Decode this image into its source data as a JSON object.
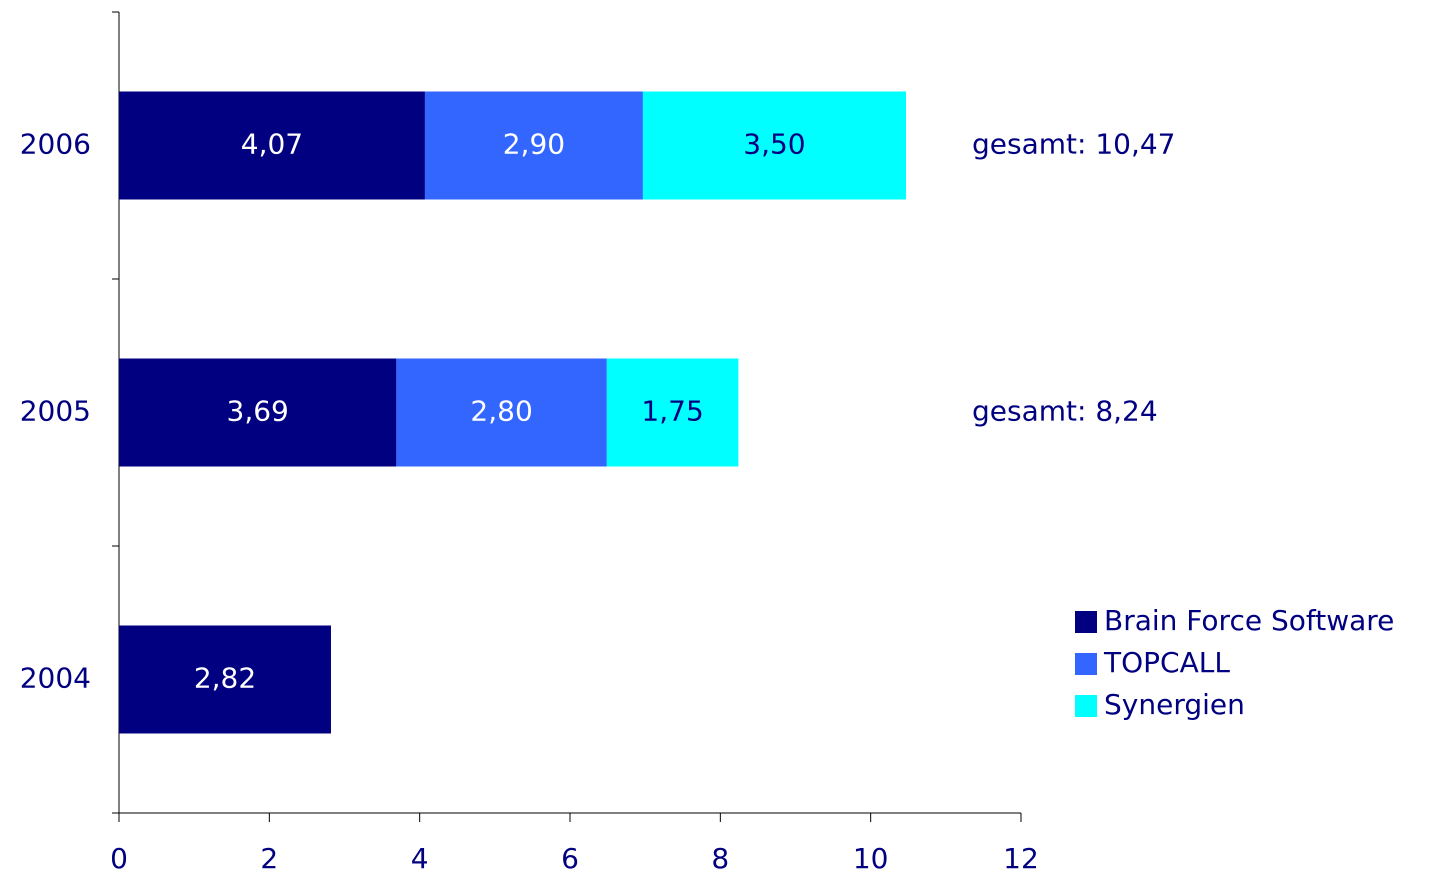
{
  "chart_data": {
    "type": "stacked-barh",
    "categories": [
      "2004",
      "2005",
      "2006"
    ],
    "series": [
      {
        "name": "Brain Force Software",
        "color": "#000080",
        "values": [
          2.82,
          3.69,
          4.07
        ],
        "value_labels": [
          "2,82",
          "3,69",
          "4,07"
        ]
      },
      {
        "name": "TOPCALL",
        "color": "#3366ff",
        "values": [
          null,
          2.8,
          2.9
        ],
        "value_labels": [
          null,
          "2,80",
          "2,90"
        ]
      },
      {
        "name": "Synergien",
        "color": "#00ffff",
        "values": [
          null,
          1.75,
          3.5
        ],
        "value_labels": [
          null,
          "1,75",
          "3,50"
        ]
      }
    ],
    "total_labels": [
      null,
      "gesamt: 8,24",
      "gesamt: 10,47"
    ],
    "xlim": [
      0,
      12
    ],
    "xticks": [
      0,
      2,
      4,
      6,
      8,
      10,
      12
    ],
    "legend": "lower-right"
  }
}
